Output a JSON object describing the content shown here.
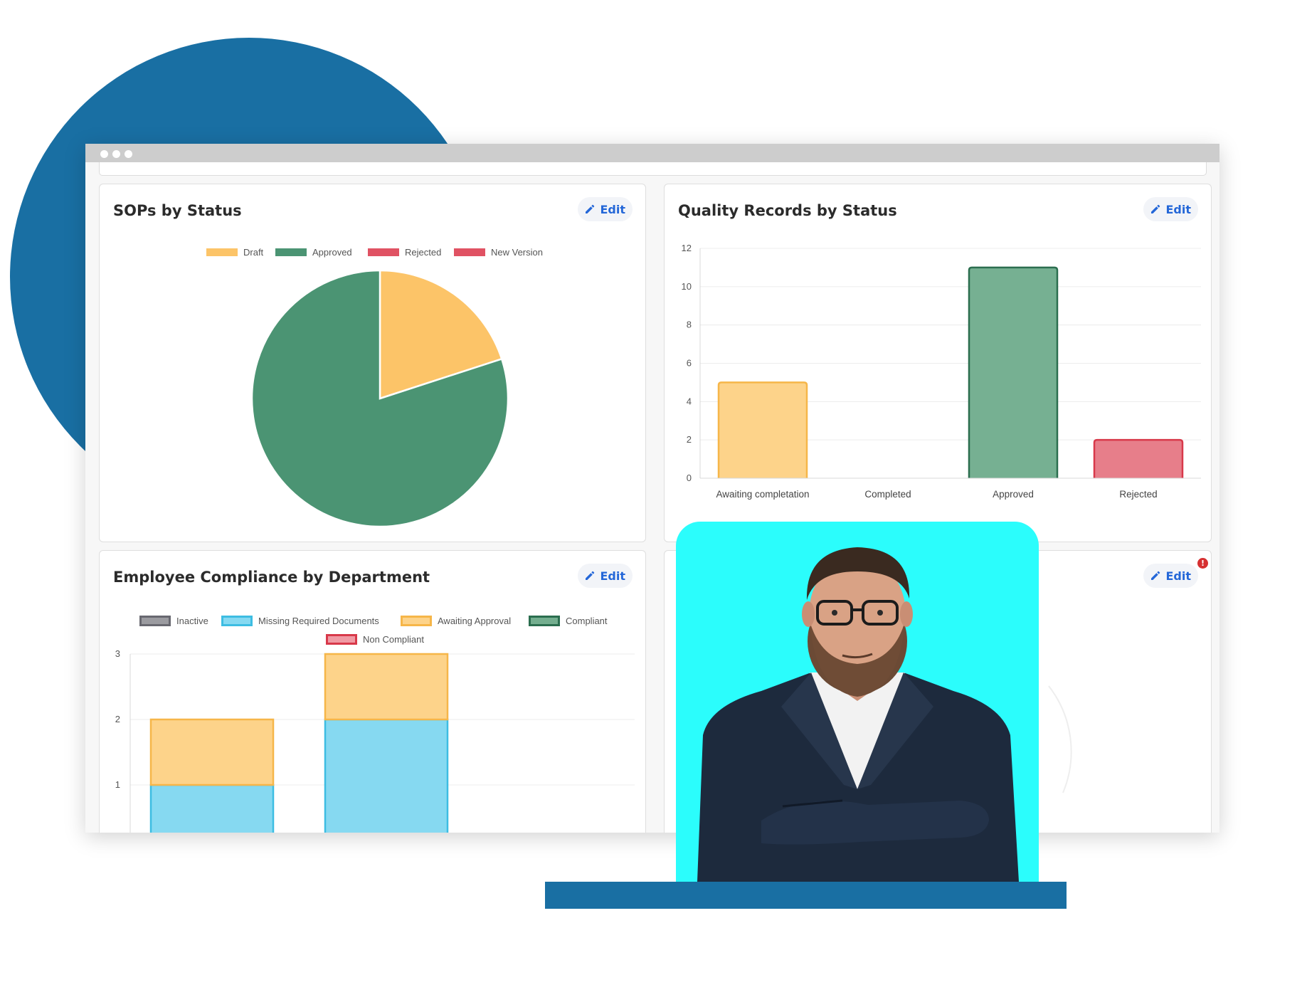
{
  "colors": {
    "blob": "#196fa3",
    "edit_text": "#2467d8",
    "draft": "#fcc468",
    "approved": "#4b9473",
    "rejected": "#e05263",
    "new_version": "#e05263",
    "photo_background": "#2bfdfc"
  },
  "edit_label": "Edit",
  "sops": {
    "title": "SOPs by Status",
    "legend": [
      "Draft",
      "Approved",
      "Rejected",
      "New Version"
    ]
  },
  "quality": {
    "title": "Quality Records by Status"
  },
  "employee": {
    "title": "Employee Compliance by Department",
    "legend": [
      "Inactive",
      "Missing Required Documents",
      "Awaiting Approval",
      "Compliant",
      "Non Compliant"
    ]
  },
  "fourth_card": {
    "has_alert": true,
    "alert_symbol": "!"
  },
  "chart_data": [
    {
      "type": "pie",
      "title": "SOPs by Status",
      "categories": [
        "Draft",
        "Approved",
        "Rejected",
        "New Version"
      ],
      "values": [
        1,
        4,
        0,
        0
      ]
    },
    {
      "type": "bar",
      "title": "Quality Records by Status",
      "categories": [
        "Awaiting completation",
        "Completed",
        "Approved",
        "Rejected"
      ],
      "values": [
        5,
        0,
        11,
        2
      ],
      "ylim": [
        0,
        12
      ],
      "yticks": [
        0,
        2,
        4,
        6,
        8,
        10,
        12
      ],
      "grid": true
    },
    {
      "type": "bar",
      "stacked": true,
      "title": "Employee Compliance by Department",
      "categories": [
        "",
        ""
      ],
      "series": [
        {
          "name": "Inactive",
          "values": [
            0,
            0
          ]
        },
        {
          "name": "Missing Required Documents",
          "values": [
            1,
            2
          ]
        },
        {
          "name": "Awaiting Approval",
          "values": [
            1,
            1
          ]
        },
        {
          "name": "Compliant",
          "values": [
            0,
            0
          ]
        },
        {
          "name": "Non Compliant",
          "values": [
            0,
            0
          ]
        }
      ],
      "ylim": [
        0,
        3
      ],
      "yticks": [
        1,
        2,
        3
      ],
      "legend": "top",
      "grid": true
    }
  ]
}
